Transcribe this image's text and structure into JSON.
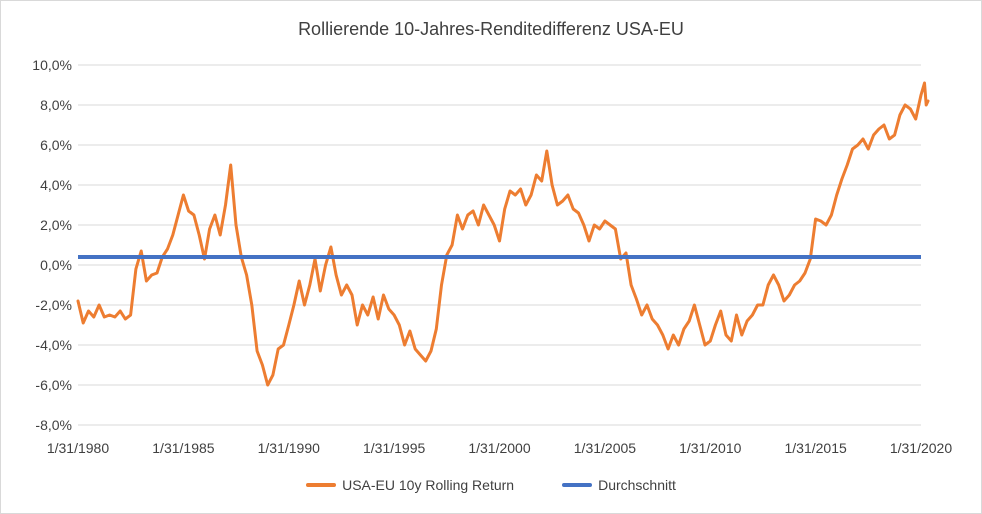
{
  "chart_data": {
    "type": "line",
    "title": "Rollierende 10-Jahres-Renditedifferenz USA-EU",
    "xlabel": "",
    "ylabel": "",
    "x_tick_labels": [
      "1/31/1980",
      "1/31/1985",
      "1/31/1990",
      "1/31/1995",
      "1/31/2000",
      "1/31/2005",
      "1/31/2010",
      "1/31/2015",
      "1/31/2020"
    ],
    "y_tick_labels": [
      "10,0%",
      "8,0%",
      "6,0%",
      "4,0%",
      "2,0%",
      "0,0%",
      "-2,0%",
      "-4,0%",
      "-6,0%",
      "-8,0%"
    ],
    "xlim": [
      "1980-01-31",
      "2020-01-31"
    ],
    "ylim": [
      -8,
      10
    ],
    "grid": true,
    "legend_position": "bottom",
    "series": [
      {
        "name": "USA-EU 10y Rolling Return",
        "color": "#ED7D31",
        "points": [
          [
            "1980-01-31",
            -1.8
          ],
          [
            "1980-04-30",
            -2.9
          ],
          [
            "1980-07-31",
            -2.3
          ],
          [
            "1980-10-31",
            -2.6
          ],
          [
            "1981-01-31",
            -2.0
          ],
          [
            "1981-04-30",
            -2.6
          ],
          [
            "1981-07-31",
            -2.5
          ],
          [
            "1981-10-31",
            -2.6
          ],
          [
            "1982-01-31",
            -2.3
          ],
          [
            "1982-04-30",
            -2.7
          ],
          [
            "1982-07-31",
            -2.5
          ],
          [
            "1982-10-31",
            -0.2
          ],
          [
            "1983-01-31",
            0.7
          ],
          [
            "1983-04-30",
            -0.8
          ],
          [
            "1983-07-31",
            -0.5
          ],
          [
            "1983-10-31",
            -0.4
          ],
          [
            "1984-01-31",
            0.4
          ],
          [
            "1984-04-30",
            0.8
          ],
          [
            "1984-07-31",
            1.5
          ],
          [
            "1984-10-31",
            2.5
          ],
          [
            "1985-01-31",
            3.5
          ],
          [
            "1985-04-30",
            2.7
          ],
          [
            "1985-07-31",
            2.5
          ],
          [
            "1985-10-31",
            1.5
          ],
          [
            "1986-01-31",
            0.3
          ],
          [
            "1986-04-30",
            1.8
          ],
          [
            "1986-07-31",
            2.5
          ],
          [
            "1986-10-31",
            1.5
          ],
          [
            "1987-01-31",
            3.0
          ],
          [
            "1987-04-30",
            5.0
          ],
          [
            "1987-07-31",
            2.0
          ],
          [
            "1987-10-31",
            0.4
          ],
          [
            "1988-01-31",
            -0.5
          ],
          [
            "1988-04-30",
            -2.0
          ],
          [
            "1988-07-31",
            -4.3
          ],
          [
            "1988-10-31",
            -5.0
          ],
          [
            "1989-01-31",
            -6.0
          ],
          [
            "1989-04-30",
            -5.5
          ],
          [
            "1989-07-31",
            -4.2
          ],
          [
            "1989-10-31",
            -4.0
          ],
          [
            "1990-01-31",
            -3.0
          ],
          [
            "1990-04-30",
            -2.0
          ],
          [
            "1990-07-31",
            -0.8
          ],
          [
            "1990-10-31",
            -2.0
          ],
          [
            "1991-01-31",
            -1.0
          ],
          [
            "1991-04-30",
            0.3
          ],
          [
            "1991-07-31",
            -1.3
          ],
          [
            "1991-10-31",
            0.0
          ],
          [
            "1992-01-31",
            0.9
          ],
          [
            "1992-04-30",
            -0.5
          ],
          [
            "1992-07-31",
            -1.5
          ],
          [
            "1992-10-31",
            -1.0
          ],
          [
            "1993-01-31",
            -1.5
          ],
          [
            "1993-04-30",
            -3.0
          ],
          [
            "1993-07-31",
            -2.0
          ],
          [
            "1993-10-31",
            -2.5
          ],
          [
            "1994-01-31",
            -1.6
          ],
          [
            "1994-04-30",
            -2.7
          ],
          [
            "1994-07-31",
            -1.5
          ],
          [
            "1994-10-31",
            -2.2
          ],
          [
            "1995-01-31",
            -2.5
          ],
          [
            "1995-04-30",
            -3.0
          ],
          [
            "1995-07-31",
            -4.0
          ],
          [
            "1995-10-31",
            -3.3
          ],
          [
            "1996-01-31",
            -4.2
          ],
          [
            "1996-04-30",
            -4.5
          ],
          [
            "1996-07-31",
            -4.8
          ],
          [
            "1996-10-31",
            -4.3
          ],
          [
            "1997-01-31",
            -3.2
          ],
          [
            "1997-04-30",
            -1.0
          ],
          [
            "1997-07-31",
            0.5
          ],
          [
            "1997-10-31",
            1.0
          ],
          [
            "1998-01-31",
            2.5
          ],
          [
            "1998-04-30",
            1.8
          ],
          [
            "1998-07-31",
            2.5
          ],
          [
            "1998-10-31",
            2.7
          ],
          [
            "1999-01-31",
            2.0
          ],
          [
            "1999-04-30",
            3.0
          ],
          [
            "1999-07-31",
            2.5
          ],
          [
            "1999-10-31",
            2.0
          ],
          [
            "2000-01-31",
            1.2
          ],
          [
            "2000-04-30",
            2.8
          ],
          [
            "2000-07-31",
            3.7
          ],
          [
            "2000-10-31",
            3.5
          ],
          [
            "2001-01-31",
            3.8
          ],
          [
            "2001-04-30",
            3.0
          ],
          [
            "2001-07-31",
            3.5
          ],
          [
            "2001-10-31",
            4.5
          ],
          [
            "2002-01-31",
            4.2
          ],
          [
            "2002-04-30",
            5.7
          ],
          [
            "2002-07-31",
            4.0
          ],
          [
            "2002-10-31",
            3.0
          ],
          [
            "2003-01-31",
            3.2
          ],
          [
            "2003-04-30",
            3.5
          ],
          [
            "2003-07-31",
            2.8
          ],
          [
            "2003-10-31",
            2.6
          ],
          [
            "2004-01-31",
            2.0
          ],
          [
            "2004-04-30",
            1.2
          ],
          [
            "2004-07-31",
            2.0
          ],
          [
            "2004-10-31",
            1.8
          ],
          [
            "2005-01-31",
            2.2
          ],
          [
            "2005-04-30",
            2.0
          ],
          [
            "2005-07-31",
            1.8
          ],
          [
            "2005-10-31",
            0.3
          ],
          [
            "2006-01-31",
            0.6
          ],
          [
            "2006-04-30",
            -1.0
          ],
          [
            "2006-07-31",
            -1.7
          ],
          [
            "2006-10-31",
            -2.5
          ],
          [
            "2007-01-31",
            -2.0
          ],
          [
            "2007-04-30",
            -2.7
          ],
          [
            "2007-07-31",
            -3.0
          ],
          [
            "2007-10-31",
            -3.5
          ],
          [
            "2008-01-31",
            -4.2
          ],
          [
            "2008-04-30",
            -3.5
          ],
          [
            "2008-07-31",
            -4.0
          ],
          [
            "2008-10-31",
            -3.2
          ],
          [
            "2009-01-31",
            -2.8
          ],
          [
            "2009-04-30",
            -2.0
          ],
          [
            "2009-07-31",
            -3.0
          ],
          [
            "2009-10-31",
            -4.0
          ],
          [
            "2010-01-31",
            -3.8
          ],
          [
            "2010-04-30",
            -3.0
          ],
          [
            "2010-07-31",
            -2.3
          ],
          [
            "2010-10-31",
            -3.5
          ],
          [
            "2011-01-31",
            -3.8
          ],
          [
            "2011-04-30",
            -2.5
          ],
          [
            "2011-07-31",
            -3.5
          ],
          [
            "2011-10-31",
            -2.8
          ],
          [
            "2012-01-31",
            -2.5
          ],
          [
            "2012-04-30",
            -2.0
          ],
          [
            "2012-07-31",
            -2.0
          ],
          [
            "2012-10-31",
            -1.0
          ],
          [
            "2013-01-31",
            -0.5
          ],
          [
            "2013-04-30",
            -1.0
          ],
          [
            "2013-07-31",
            -1.8
          ],
          [
            "2013-10-31",
            -1.5
          ],
          [
            "2014-01-31",
            -1.0
          ],
          [
            "2014-04-30",
            -0.8
          ],
          [
            "2014-07-31",
            -0.4
          ],
          [
            "2014-10-31",
            0.3
          ],
          [
            "2015-01-31",
            2.3
          ],
          [
            "2015-04-30",
            2.2
          ],
          [
            "2015-07-31",
            2.0
          ],
          [
            "2015-10-31",
            2.5
          ],
          [
            "2016-01-31",
            3.5
          ],
          [
            "2016-04-30",
            4.3
          ],
          [
            "2016-07-31",
            5.0
          ],
          [
            "2016-10-31",
            5.8
          ],
          [
            "2017-01-31",
            6.0
          ],
          [
            "2017-04-30",
            6.3
          ],
          [
            "2017-07-31",
            5.8
          ],
          [
            "2017-10-31",
            6.5
          ],
          [
            "2018-01-31",
            6.8
          ],
          [
            "2018-04-30",
            7.0
          ],
          [
            "2018-07-31",
            6.3
          ],
          [
            "2018-10-31",
            6.5
          ],
          [
            "2019-01-31",
            7.5
          ],
          [
            "2019-04-30",
            8.0
          ],
          [
            "2019-07-31",
            7.8
          ],
          [
            "2019-10-31",
            7.3
          ],
          [
            "2020-01-31",
            8.5
          ],
          [
            "2020-03-31",
            9.1
          ],
          [
            "2020-04-30",
            8.0
          ],
          [
            "2020-05-31",
            8.2
          ]
        ]
      },
      {
        "name": "Durchschnitt",
        "color": "#4472C4",
        "constant": 0.4
      }
    ]
  }
}
